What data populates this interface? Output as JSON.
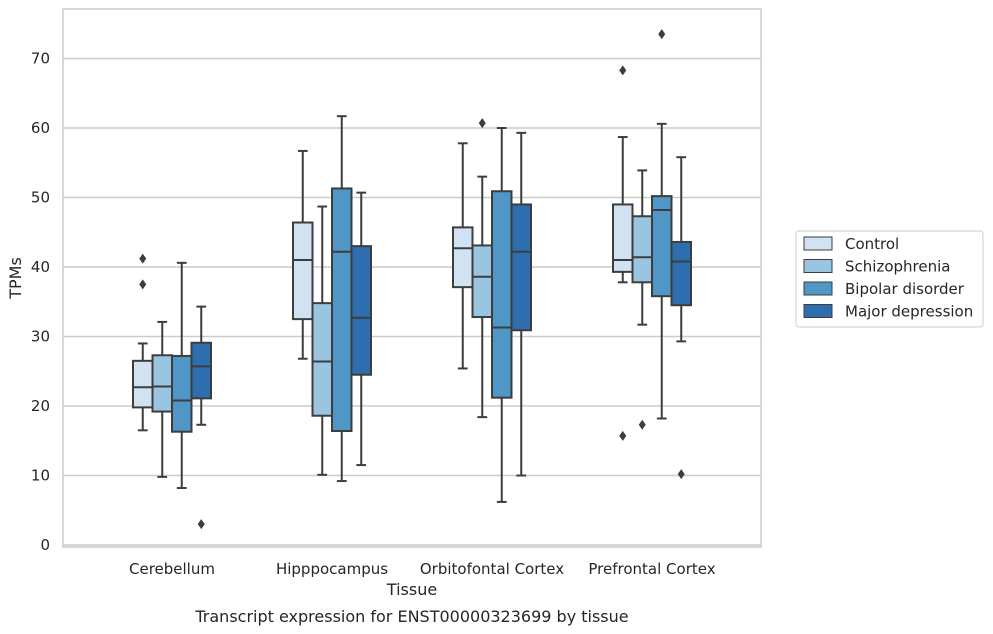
{
  "chart_data": {
    "type": "box",
    "title": "",
    "caption": "Transcript expression for ENST00000323699 by tissue",
    "xlabel": "Tissue",
    "ylabel": "TPMs",
    "ylim": [
      0,
      76
    ],
    "yticks": [
      0,
      10,
      20,
      30,
      40,
      50,
      60,
      70
    ],
    "grid": "horizontal",
    "legend_position": "outside-right",
    "categories": [
      "Cerebellum",
      "Hipppocampus",
      "Orbitofontal Cortex",
      "Prefrontal Cortex"
    ],
    "series": [
      {
        "name": "Control",
        "color": "#d1e2f2",
        "boxes": [
          {
            "whislo": 16.5,
            "q1": 19.8,
            "med": 22.7,
            "q3": 26.5,
            "whishi": 29.0,
            "fliers": [
              37.5,
              41.2
            ]
          },
          {
            "whislo": 26.8,
            "q1": 32.5,
            "med": 41.0,
            "q3": 46.4,
            "whishi": 56.7,
            "fliers": []
          },
          {
            "whislo": 25.4,
            "q1": 37.1,
            "med": 42.7,
            "q3": 45.7,
            "whishi": 57.8,
            "fliers": []
          },
          {
            "whislo": 37.8,
            "q1": 39.3,
            "med": 41.0,
            "q3": 49.0,
            "whishi": 58.7,
            "fliers": [
              68.3,
              15.7
            ]
          }
        ]
      },
      {
        "name": "Schizophrenia",
        "color": "#9ac5e0",
        "boxes": [
          {
            "whislo": 9.8,
            "q1": 19.2,
            "med": 22.8,
            "q3": 27.3,
            "whishi": 32.1,
            "fliers": []
          },
          {
            "whislo": 10.1,
            "q1": 18.6,
            "med": 26.4,
            "q3": 34.8,
            "whishi": 48.7,
            "fliers": []
          },
          {
            "whislo": 18.4,
            "q1": 32.8,
            "med": 38.6,
            "q3": 43.1,
            "whishi": 53.0,
            "fliers": [
              60.7
            ]
          },
          {
            "whislo": 31.7,
            "q1": 37.8,
            "med": 41.4,
            "q3": 47.3,
            "whishi": 53.9,
            "fliers": [
              17.3
            ]
          }
        ]
      },
      {
        "name": "Bipolar disorder",
        "color": "#5097c7",
        "boxes": [
          {
            "whislo": 8.2,
            "q1": 16.3,
            "med": 20.8,
            "q3": 27.2,
            "whishi": 40.6,
            "fliers": []
          },
          {
            "whislo": 9.2,
            "q1": 16.4,
            "med": 42.2,
            "q3": 51.3,
            "whishi": 61.7,
            "fliers": []
          },
          {
            "whislo": 6.2,
            "q1": 21.2,
            "med": 31.3,
            "q3": 50.9,
            "whishi": 60.0,
            "fliers": []
          },
          {
            "whislo": 18.2,
            "q1": 35.8,
            "med": 48.2,
            "q3": 50.2,
            "whishi": 60.6,
            "fliers": [
              73.5
            ]
          }
        ]
      },
      {
        "name": "Major depression",
        "color": "#2e6eae",
        "boxes": [
          {
            "whislo": 17.3,
            "q1": 21.1,
            "med": 25.7,
            "q3": 29.1,
            "whishi": 34.3,
            "fliers": [
              3.0
            ]
          },
          {
            "whislo": 11.5,
            "q1": 24.5,
            "med": 32.7,
            "q3": 43.0,
            "whishi": 50.7,
            "fliers": []
          },
          {
            "whislo": 10.0,
            "q1": 30.9,
            "med": 42.2,
            "q3": 49.0,
            "whishi": 59.3,
            "fliers": []
          },
          {
            "whislo": 29.3,
            "q1": 34.5,
            "med": 40.8,
            "q3": 43.6,
            "whishi": 55.8,
            "fliers": [
              10.2
            ]
          }
        ]
      }
    ]
  }
}
